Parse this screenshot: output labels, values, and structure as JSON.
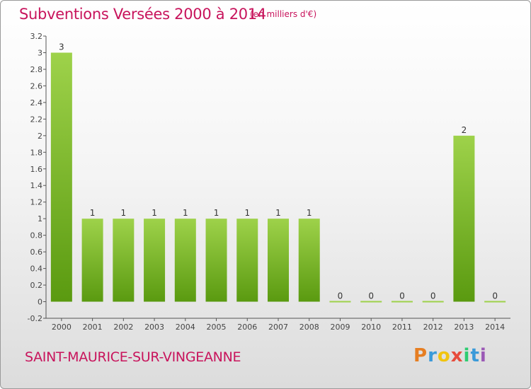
{
  "title": "Subventions Versées 2000 à 2014",
  "unit_note": "(en milliers d'€)",
  "city": "SAINT-MAURICE-SUR-VINGEANNE",
  "brand": {
    "name": "Proxiti",
    "letters": [
      "P",
      "r",
      "o",
      "x",
      "i",
      "t",
      "i"
    ],
    "letter_colors": [
      "#e67e22",
      "#3a9ad9",
      "#f1c40f",
      "#e74c3c",
      "#2ecc71",
      "#3a9ad9",
      "#9b59b6"
    ]
  },
  "colors": {
    "title": "#c8145c",
    "bar_top": "#9ed24a",
    "bar_bottom": "#5a9a10",
    "axis": "#555555"
  },
  "chart_data": {
    "type": "bar",
    "categories": [
      "2000",
      "2001",
      "2002",
      "2003",
      "2004",
      "2005",
      "2006",
      "2007",
      "2008",
      "2009",
      "2010",
      "2011",
      "2012",
      "2013",
      "2014"
    ],
    "values": [
      3,
      1,
      1,
      1,
      1,
      1,
      1,
      1,
      1,
      0,
      0,
      0,
      0,
      2,
      0
    ],
    "data_labels": [
      "3",
      "1",
      "1",
      "1",
      "1",
      "1",
      "1",
      "1",
      "1",
      "0",
      "0",
      "0",
      "0",
      "2",
      "0"
    ],
    "ylim": [
      -0.2,
      3.2
    ],
    "yticks": [
      "-0.2",
      "0",
      "0.2",
      "0.4",
      "0.6",
      "0.8",
      "1",
      "1.2",
      "1.4",
      "1.6",
      "1.8",
      "2",
      "2.2",
      "2.4",
      "2.6",
      "2.8",
      "3",
      "3.2"
    ],
    "ytick_values": [
      -0.2,
      0,
      0.2,
      0.4,
      0.6,
      0.8,
      1,
      1.2,
      1.4,
      1.6,
      1.8,
      2,
      2.2,
      2.4,
      2.6,
      2.8,
      3,
      3.2
    ],
    "title": "Subventions Versées 2000 à 2014",
    "xlabel": "",
    "ylabel": "",
    "grid": false
  }
}
